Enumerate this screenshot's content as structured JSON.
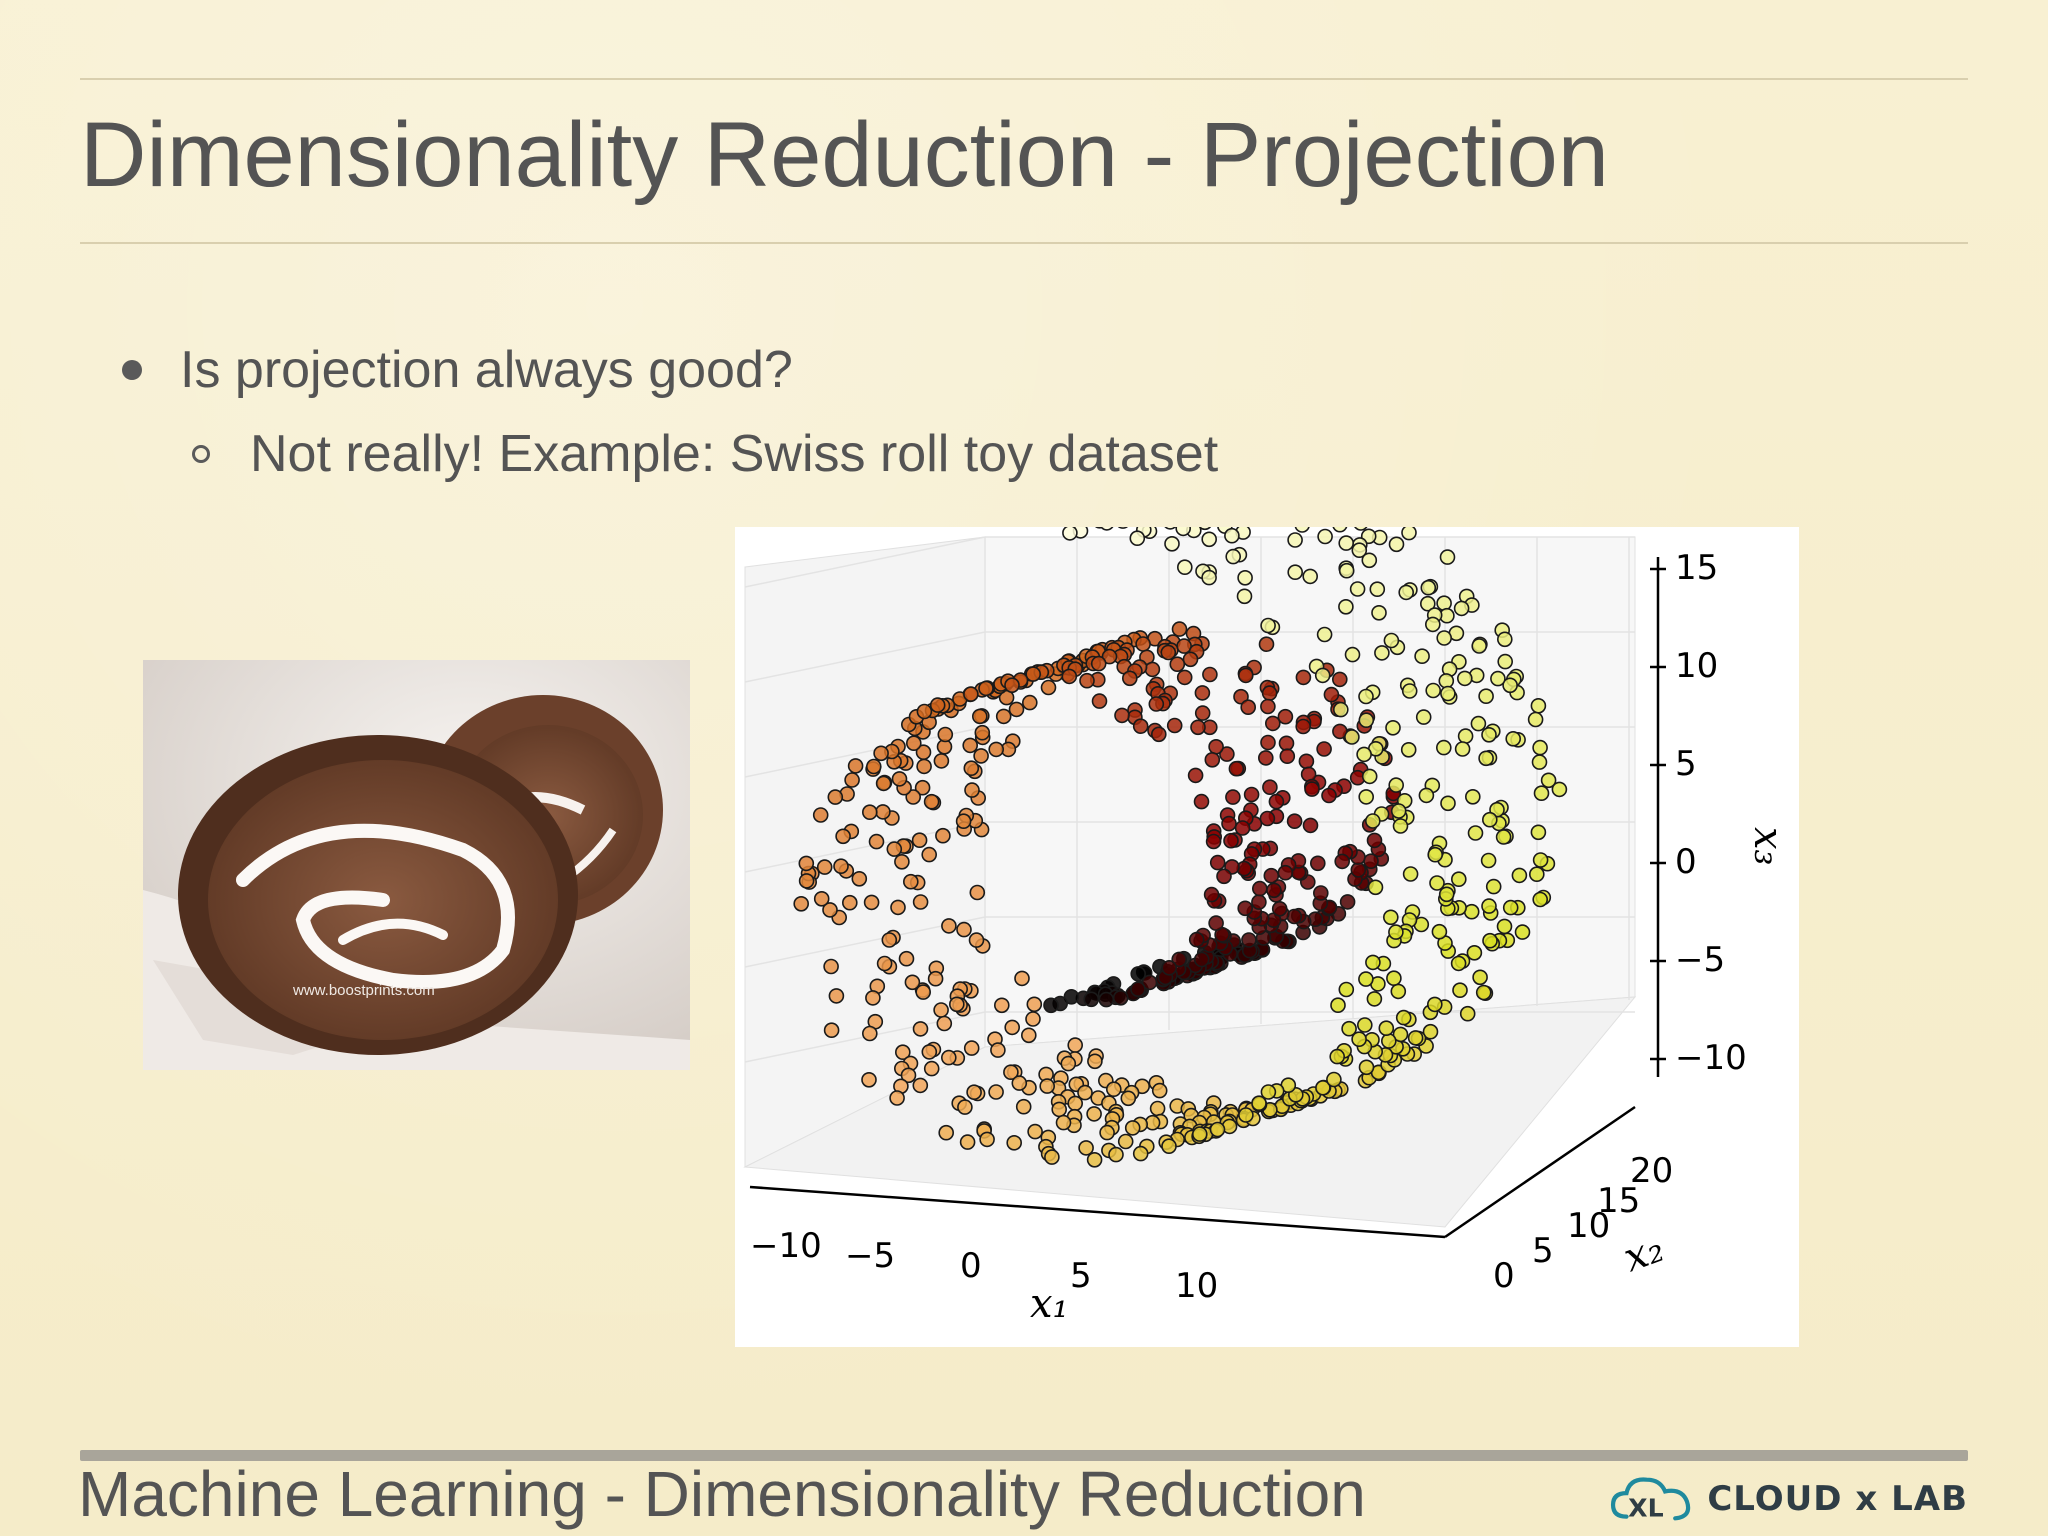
{
  "slide": {
    "title": "Dimensionality Reduction - Projection",
    "footer": "Machine Learning - Dimensionality Reduction",
    "logo_text": "CLOUD x LAB",
    "logo_mark": "XL"
  },
  "bullets": [
    {
      "level": 1,
      "text": "Is projection always good?"
    },
    {
      "level": 2,
      "text": "Not really! Example: Swiss roll toy dataset"
    }
  ],
  "cake_image": {
    "watermark": "www.boostprints.com"
  },
  "chart_data": {
    "type": "scatter",
    "projection": "3d",
    "x1": {
      "label": "x₁",
      "ticks": [
        "−10",
        "−5",
        "0",
        "5",
        "10"
      ],
      "range": [
        -10,
        13
      ]
    },
    "x2": {
      "label": "x₂",
      "ticks": [
        "0",
        "5",
        "10",
        "15",
        "20"
      ],
      "range": [
        0,
        21
      ]
    },
    "x3": {
      "label": "x₃",
      "ticks": [
        "15",
        "10",
        "5",
        "0",
        "−5",
        "−10"
      ],
      "range": [
        -12,
        15
      ]
    },
    "grid": true,
    "colormap": [
      "#000000",
      "#8b0000",
      "#d2691e",
      "#f2a65a",
      "#d9e021",
      "#fffde0"
    ],
    "description_of_points": "Swiss roll spiral, color follows position along the roll"
  }
}
